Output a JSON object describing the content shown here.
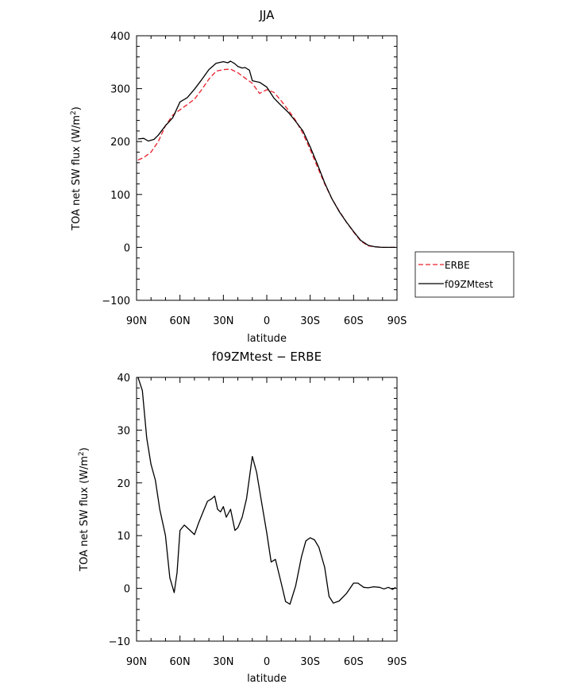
{
  "chart_data": [
    {
      "type": "line",
      "title": "JJA",
      "xlabel": "latitude",
      "ylabel": "TOA net SW flux (W/m",
      "ylabel_sup": "2",
      "ylabel_close": ")",
      "xlim": [
        90,
        -90
      ],
      "ylim": [
        -100,
        400
      ],
      "xticks": [
        90,
        60,
        30,
        0,
        -30,
        -60,
        -90
      ],
      "xtick_labels": [
        "90N",
        "60N",
        "30N",
        "0",
        "30S",
        "60S",
        "90S"
      ],
      "yticks": [
        -100,
        0,
        100,
        200,
        300,
        400
      ],
      "ytick_labels": [
        "−100",
        "0",
        "100",
        "200",
        "300",
        "400"
      ],
      "legend": "right",
      "series": [
        {
          "name": "ERBE",
          "color": "#e8202a",
          "dash": true,
          "x": [
            89,
            85,
            80,
            75,
            70,
            65,
            60,
            55,
            50,
            45,
            40,
            35,
            30,
            25,
            20,
            15,
            10,
            5,
            0,
            -5,
            -10,
            -15,
            -20,
            -25,
            -30,
            -35,
            -40,
            -45,
            -50,
            -55,
            -60,
            -65,
            -70,
            -75,
            -80,
            -85,
            -89
          ],
          "y": [
            165,
            170,
            180,
            200,
            230,
            250,
            260,
            270,
            280,
            298,
            318,
            333,
            336,
            337,
            330,
            320,
            310,
            291,
            298,
            293,
            277,
            259,
            240,
            215,
            185,
            152,
            120,
            92,
            69,
            48,
            29,
            12,
            3,
            1,
            0,
            0,
            0
          ]
        },
        {
          "name": "f09ZMtest",
          "color": "#000000",
          "dash": false,
          "x": [
            89,
            85,
            82,
            78,
            75,
            70,
            65,
            60,
            55,
            50,
            45,
            40,
            35,
            30,
            27,
            25,
            22,
            20,
            17,
            15,
            12,
            10,
            5,
            0,
            -5,
            -10,
            -15,
            -20,
            -25,
            -30,
            -35,
            -40,
            -45,
            -50,
            -55,
            -60,
            -65,
            -70,
            -75,
            -80,
            -85,
            -89
          ],
          "y": [
            205,
            206,
            201,
            204,
            212,
            230,
            245,
            275,
            283,
            299,
            317,
            336,
            348,
            351,
            349,
            352,
            347,
            342,
            339,
            340,
            335,
            315,
            312,
            303,
            282,
            268,
            255,
            238,
            220,
            190,
            157,
            122,
            92,
            68,
            48,
            30,
            13,
            4,
            1,
            0,
            0,
            0
          ]
        }
      ]
    },
    {
      "type": "line",
      "title": "f09ZMtest − ERBE",
      "xlabel": "latitude",
      "ylabel": "TOA net SW flux (W/m",
      "ylabel_sup": "2",
      "ylabel_close": ")",
      "xlim": [
        90,
        -90
      ],
      "ylim": [
        -10,
        40
      ],
      "xticks": [
        90,
        60,
        30,
        0,
        -30,
        -60,
        -90
      ],
      "xtick_labels": [
        "90N",
        "60N",
        "30N",
        "0",
        "30S",
        "60S",
        "90S"
      ],
      "yticks": [
        -10,
        0,
        10,
        20,
        30,
        40
      ],
      "ytick_labels": [
        "−10",
        "0",
        "10",
        "20",
        "30",
        "40"
      ],
      "series": [
        {
          "color": "#000000",
          "dash": false,
          "x": [
            89,
            86,
            83,
            80,
            77,
            74,
            70,
            67,
            64,
            62,
            60,
            57,
            53,
            50,
            47,
            44,
            41,
            38,
            36,
            34,
            32,
            30,
            28,
            25,
            22,
            20,
            17,
            14,
            10,
            7,
            4,
            0,
            -3,
            -6,
            -10,
            -13,
            -16,
            -20,
            -24,
            -27,
            -30,
            -33,
            -36,
            -40,
            -43,
            -46,
            -50,
            -55,
            -60,
            -63,
            -67,
            -70,
            -74,
            -78,
            -81,
            -84,
            -87,
            -89
          ],
          "y": [
            40,
            37.5,
            28.5,
            23.5,
            20.5,
            15,
            10,
            2,
            -0.8,
            3,
            11,
            12,
            11,
            10.2,
            12.5,
            14.5,
            16.5,
            17,
            17.5,
            15,
            14.5,
            15.5,
            13.5,
            15,
            11,
            11.5,
            13.5,
            17,
            25,
            22,
            17,
            10.5,
            5,
            5.5,
            1,
            -2.5,
            -3,
            0.5,
            6,
            9,
            9.6,
            9.2,
            7.8,
            4,
            -1.5,
            -2.8,
            -2.4,
            -1,
            1,
            1,
            0.2,
            0.1,
            0.3,
            0.2,
            -0.1,
            0.2,
            -0.2,
            0.2
          ]
        }
      ]
    }
  ]
}
